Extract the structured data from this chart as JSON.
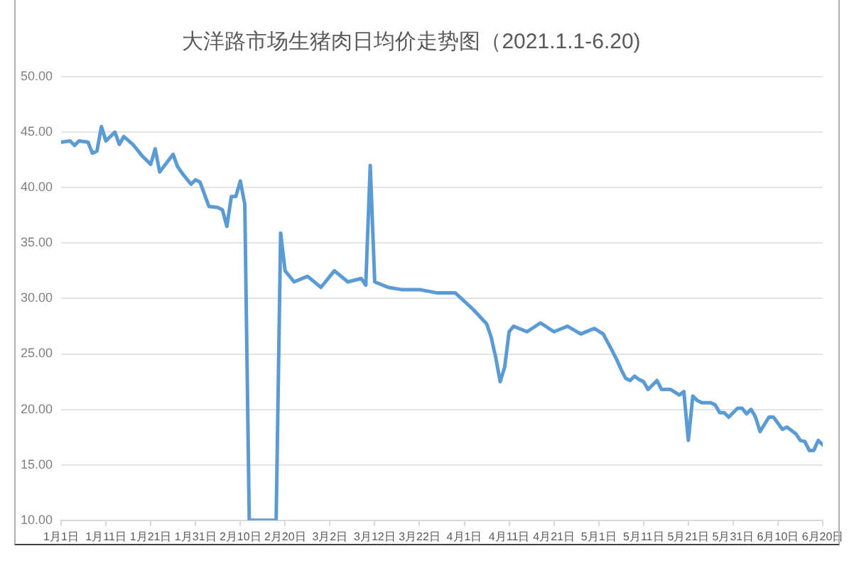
{
  "chart_data": {
    "type": "line",
    "title": "大洋路市场生猪肉日均价走势图（2021.1.1-6.20)",
    "x": [
      "2021-01-01",
      "2021-01-03",
      "2021-01-04",
      "2021-01-05",
      "2021-01-07",
      "2021-01-08",
      "2021-01-09",
      "2021-01-10",
      "2021-01-11",
      "2021-01-13",
      "2021-01-14",
      "2021-01-15",
      "2021-01-17",
      "2021-01-19",
      "2021-01-21",
      "2021-01-22",
      "2021-01-23",
      "2021-01-26",
      "2021-01-27",
      "2021-01-28",
      "2021-01-30",
      "2021-01-31",
      "2021-02-01",
      "2021-02-03",
      "2021-02-05",
      "2021-02-06",
      "2021-02-07",
      "2021-02-08",
      "2021-02-09",
      "2021-02-10",
      "2021-02-11",
      "2021-02-12",
      "2021-02-18",
      "2021-02-19",
      "2021-02-20",
      "2021-02-22",
      "2021-02-25",
      "2021-02-28",
      "2021-03-03",
      "2021-03-06",
      "2021-03-09",
      "2021-03-10",
      "2021-03-11",
      "2021-03-12",
      "2021-03-15",
      "2021-03-18",
      "2021-03-22",
      "2021-03-26",
      "2021-03-30",
      "2021-04-03",
      "2021-04-06",
      "2021-04-07",
      "2021-04-08",
      "2021-04-09",
      "2021-04-10",
      "2021-04-11",
      "2021-04-12",
      "2021-04-15",
      "2021-04-18",
      "2021-04-21",
      "2021-04-24",
      "2021-04-27",
      "2021-04-30",
      "2021-05-02",
      "2021-05-04",
      "2021-05-05",
      "2021-05-06",
      "2021-05-07",
      "2021-05-08",
      "2021-05-09",
      "2021-05-10",
      "2021-05-11",
      "2021-05-12",
      "2021-05-14",
      "2021-05-15",
      "2021-05-17",
      "2021-05-19",
      "2021-05-20",
      "2021-05-21",
      "2021-05-22",
      "2021-05-23",
      "2021-05-24",
      "2021-05-26",
      "2021-05-27",
      "2021-05-28",
      "2021-05-29",
      "2021-05-30",
      "2021-06-01",
      "2021-06-02",
      "2021-06-03",
      "2021-06-04",
      "2021-06-05",
      "2021-06-06",
      "2021-06-08",
      "2021-06-09",
      "2021-06-11",
      "2021-06-12",
      "2021-06-14",
      "2021-06-15",
      "2021-06-16",
      "2021-06-17",
      "2021-06-18",
      "2021-06-19",
      "2021-06-20"
    ],
    "values": [
      44.1,
      44.2,
      43.8,
      44.2,
      44.1,
      43.1,
      43.3,
      45.5,
      44.2,
      45.0,
      43.9,
      44.6,
      43.9,
      42.9,
      42.1,
      43.5,
      41.4,
      43.0,
      41.9,
      41.3,
      40.3,
      40.7,
      40.5,
      38.3,
      38.2,
      38.0,
      36.5,
      39.2,
      39.2,
      40.6,
      38.5,
      10,
      10,
      35.9,
      32.5,
      31.5,
      32.0,
      31.0,
      32.5,
      31.5,
      31.8,
      31.2,
      42.0,
      31.5,
      31.0,
      30.8,
      30.8,
      30.5,
      30.5,
      29.0,
      27.7,
      26.5,
      24.7,
      22.5,
      23.8,
      27.0,
      27.5,
      27.0,
      27.8,
      27.0,
      27.5,
      26.8,
      27.3,
      26.8,
      25.3,
      24.5,
      23.6,
      22.8,
      22.6,
      23.0,
      22.7,
      22.5,
      21.8,
      22.6,
      21.8,
      21.8,
      21.3,
      21.6,
      17.2,
      21.2,
      20.8,
      20.6,
      20.6,
      20.4,
      19.7,
      19.7,
      19.3,
      20.1,
      20.1,
      19.6,
      20.0,
      19.3,
      18.0,
      19.3,
      19.3,
      18.2,
      18.4,
      17.8,
      17.2,
      17.1,
      16.3,
      16.3,
      17.2,
      16.8
    ],
    "color": "#5b9bd5",
    "xlim": [
      "2021-01-01",
      "2021-06-20"
    ],
    "xticks": [
      {
        "value": "2021-01-01",
        "label": "1月1日"
      },
      {
        "value": "2021-01-11",
        "label": "1月11日"
      },
      {
        "value": "2021-01-21",
        "label": "1月21日"
      },
      {
        "value": "2021-01-31",
        "label": "1月31日"
      },
      {
        "value": "2021-02-10",
        "label": "2月10日"
      },
      {
        "value": "2021-02-20",
        "label": "2月20日"
      },
      {
        "value": "2021-03-02",
        "label": "3月2日"
      },
      {
        "value": "2021-03-12",
        "label": "3月12日"
      },
      {
        "value": "2021-03-22",
        "label": "3月22日"
      },
      {
        "value": "2021-04-01",
        "label": "4月1日"
      },
      {
        "value": "2021-04-11",
        "label": "4月11日"
      },
      {
        "value": "2021-04-21",
        "label": "4月21日"
      },
      {
        "value": "2021-05-01",
        "label": "5月1日"
      },
      {
        "value": "2021-05-11",
        "label": "5月11日"
      },
      {
        "value": "2021-05-21",
        "label": "5月21日"
      },
      {
        "value": "2021-05-31",
        "label": "5月31日"
      },
      {
        "value": "2021-06-10",
        "label": "6月10日"
      },
      {
        "value": "2021-06-20",
        "label": "6月20日"
      }
    ],
    "ylim": [
      10,
      50
    ],
    "yticks": [
      {
        "value": 10,
        "label": "10.00"
      },
      {
        "value": 15,
        "label": "15.00"
      },
      {
        "value": 20,
        "label": "20.00"
      },
      {
        "value": 25,
        "label": "25.00"
      },
      {
        "value": 30,
        "label": "30.00"
      },
      {
        "value": 35,
        "label": "35.00"
      },
      {
        "value": 40,
        "label": "40.00"
      },
      {
        "value": 45,
        "label": "45.00"
      },
      {
        "value": 50,
        "label": "50.00"
      }
    ],
    "grid": "y",
    "marker": "none",
    "line_style": "solid"
  }
}
